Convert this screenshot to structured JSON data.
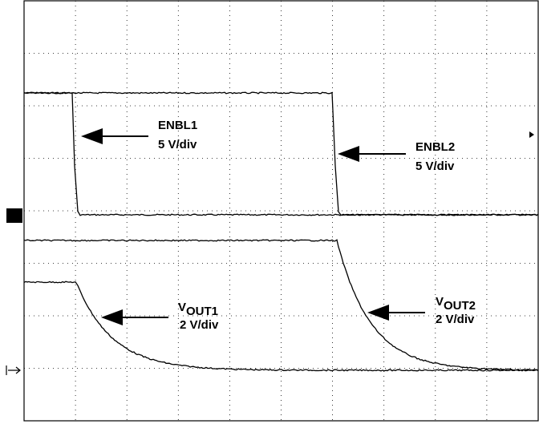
{
  "traces": [
    {
      "name": "ENBL1",
      "scale": "5 V/div"
    },
    {
      "name": "ENBL2",
      "scale": "5 V/div"
    },
    {
      "symbol": "V",
      "subscript": "OUT1",
      "scale": "2 V/div"
    },
    {
      "symbol": "V",
      "subscript": "OUT2",
      "scale": "2 V/div"
    }
  ]
}
